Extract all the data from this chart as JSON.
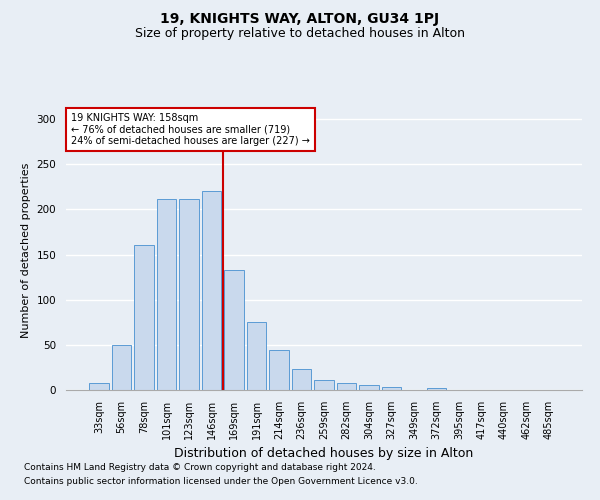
{
  "title": "19, KNIGHTS WAY, ALTON, GU34 1PJ",
  "subtitle": "Size of property relative to detached houses in Alton",
  "xlabel": "Distribution of detached houses by size in Alton",
  "ylabel": "Number of detached properties",
  "footer_line1": "Contains HM Land Registry data © Crown copyright and database right 2024.",
  "footer_line2": "Contains public sector information licensed under the Open Government Licence v3.0.",
  "categories": [
    "33sqm",
    "56sqm",
    "78sqm",
    "101sqm",
    "123sqm",
    "146sqm",
    "169sqm",
    "191sqm",
    "214sqm",
    "236sqm",
    "259sqm",
    "282sqm",
    "304sqm",
    "327sqm",
    "349sqm",
    "372sqm",
    "395sqm",
    "417sqm",
    "440sqm",
    "462sqm",
    "485sqm"
  ],
  "values": [
    8,
    50,
    161,
    211,
    211,
    220,
    133,
    75,
    44,
    23,
    11,
    8,
    6,
    3,
    0,
    2,
    0,
    0,
    0,
    0,
    0
  ],
  "bar_color": "#c9d9ed",
  "bar_edge_color": "#5b9bd5",
  "vline_x": 6,
  "vline_color": "#cc0000",
  "annotation_text": "19 KNIGHTS WAY: 158sqm\n← 76% of detached houses are smaller (719)\n24% of semi-detached houses are larger (227) →",
  "annotation_box_color": "#ffffff",
  "annotation_box_edge": "#cc0000",
  "ylim": [
    0,
    310
  ],
  "yticks": [
    0,
    50,
    100,
    150,
    200,
    250,
    300
  ],
  "bg_color": "#e8eef5",
  "plot_bg_color": "#e8eef5",
  "grid_color": "#ffffff",
  "title_fontsize": 10,
  "subtitle_fontsize": 9,
  "tick_fontsize": 7,
  "ylabel_fontsize": 8,
  "xlabel_fontsize": 9,
  "footer_fontsize": 6.5
}
